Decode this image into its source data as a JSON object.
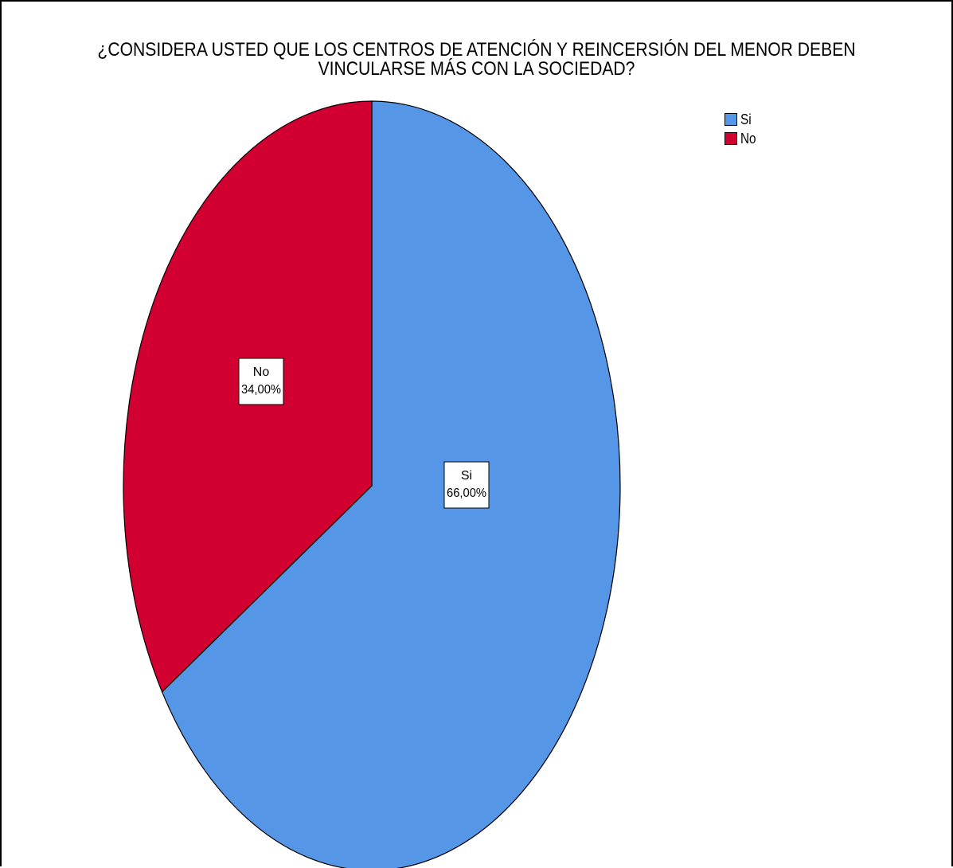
{
  "chart_data": {
    "type": "pie",
    "title_lines": [
      "¿CONSIDERA USTED QUE LOS CENTROS DE ATENCIÓN Y REINCERSIÓN DEL MENOR DEBEN",
      "VINCULARSE MÁS CON LA SOCIEDAD?"
    ],
    "slices": [
      {
        "name": "Si",
        "value": 66.0,
        "label": "66,00%",
        "color": "#5596e6"
      },
      {
        "name": "No",
        "value": 34.0,
        "label": "34,00%",
        "color": "#d10030"
      }
    ],
    "start_angle": "12 o'clock",
    "direction": "clockwise",
    "legend": {
      "placement": "top-right",
      "entries": [
        "Si",
        "No"
      ]
    }
  }
}
